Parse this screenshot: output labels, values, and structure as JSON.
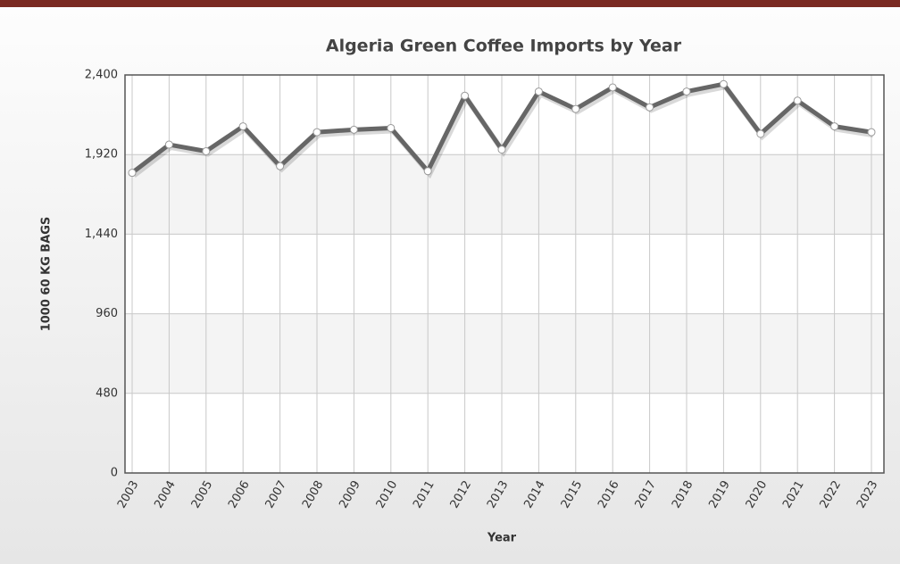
{
  "chart_data": {
    "type": "line",
    "title": "Algeria Green Coffee Imports by Year",
    "x_label": "Year",
    "y_label": "1000 60 KG BAGS",
    "categories": [
      "2003",
      "2004",
      "2005",
      "2006",
      "2007",
      "2008",
      "2009",
      "2010",
      "2011",
      "2012",
      "2013",
      "2014",
      "2015",
      "2016",
      "2017",
      "2018",
      "2019",
      "2020",
      "2021",
      "2022",
      "2023"
    ],
    "series": [
      {
        "name": "Imports",
        "color": "#666666",
        "values": [
          1810,
          1980,
          1940,
          2090,
          1850,
          2055,
          2070,
          2080,
          1820,
          2275,
          1950,
          2300,
          2195,
          2325,
          2205,
          2300,
          2345,
          2045,
          2245,
          2090,
          2055
        ]
      }
    ],
    "ylim": [
      0,
      2400
    ],
    "yticks": [
      0,
      480,
      960,
      {
        "value": 1440,
        "label": "1,440"
      },
      {
        "value": 1920,
        "label": "1,920"
      },
      {
        "value": 2400,
        "label": "2,400"
      }
    ],
    "grid": true
  }
}
